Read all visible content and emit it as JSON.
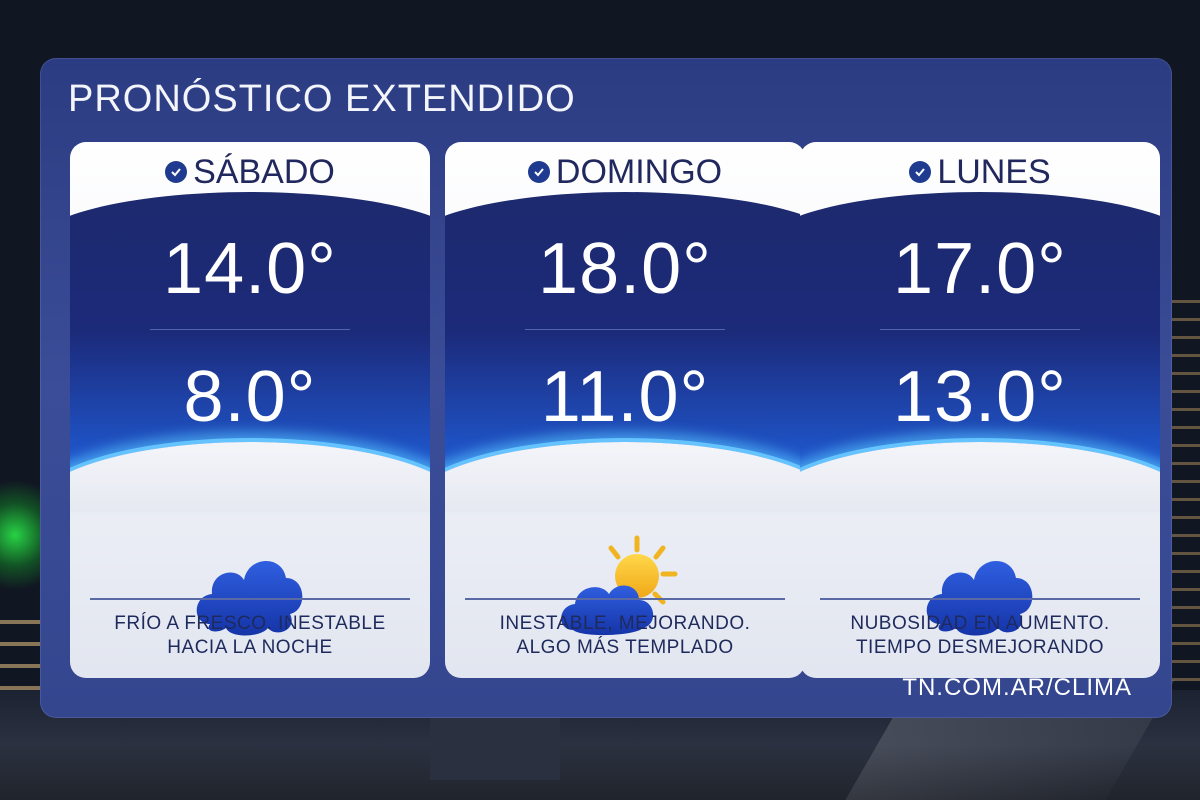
{
  "title": "PRONÓSTICO EXTENDIDO",
  "footer_url": "TN.COM.AR/CLIMA",
  "accent_color": "#2c3c82",
  "days": [
    {
      "name": "SÁBADO",
      "max": "14.0°",
      "min": "8.0°",
      "icon": "cloud-icon",
      "description_line1": "FRÍO A FRESCO. INESTABLE",
      "description_line2": "HACIA LA NOCHE"
    },
    {
      "name": "DOMINGO",
      "max": "18.0°",
      "min": "11.0°",
      "icon": "partly-cloudy-icon",
      "description_line1": "INESTABLE, MEJORANDO.",
      "description_line2": "ALGO MÁS TEMPLADO"
    },
    {
      "name": "LUNES",
      "max": "17.0°",
      "min": "13.0°",
      "icon": "cloud-icon",
      "description_line1": "NUBOSIDAD EN AUMENTO.",
      "description_line2": "TIEMPO DESMEJORANDO"
    }
  ]
}
